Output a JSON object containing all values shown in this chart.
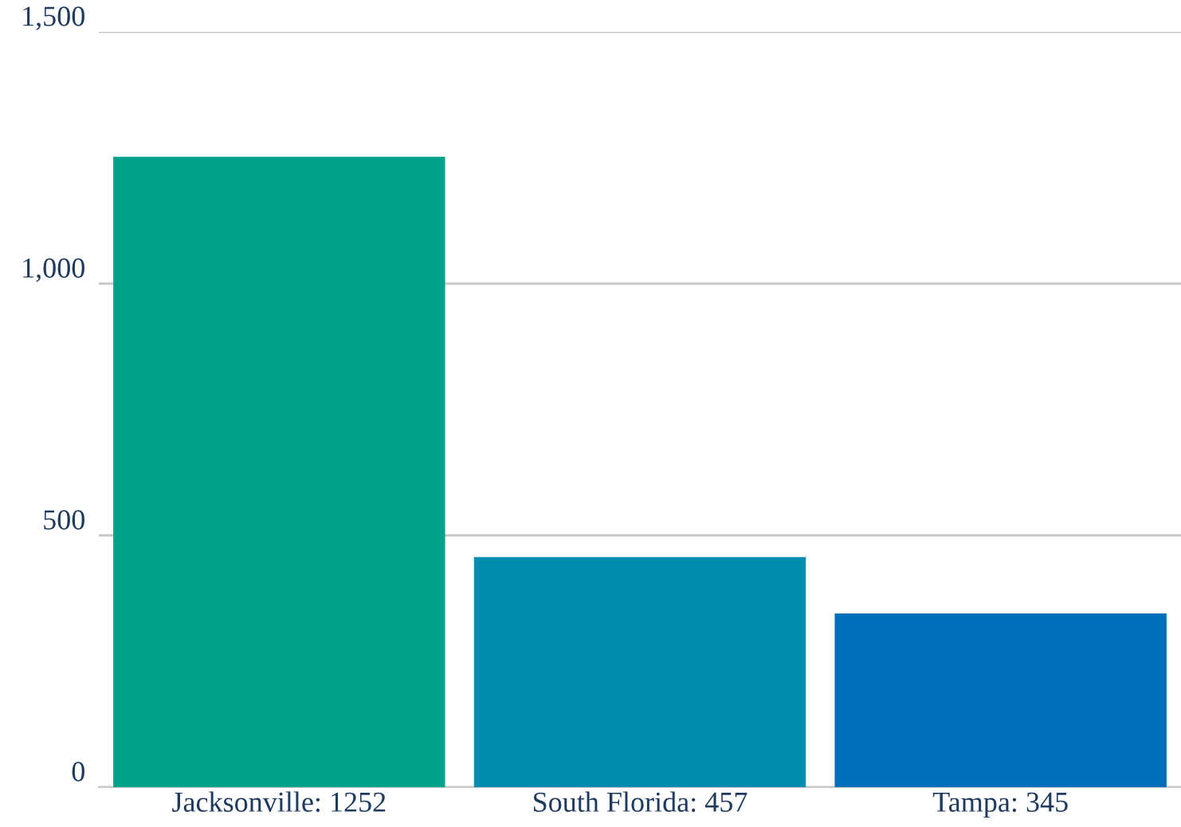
{
  "chart_data": {
    "type": "bar",
    "categories": [
      "Jacksonville: 1252",
      "South Florida: 457",
      "Tampa: 345"
    ],
    "values": [
      1252,
      457,
      345
    ],
    "colors": [
      "#00a28a",
      "#008eb0",
      "#006fbb"
    ],
    "ylim": [
      0,
      1500
    ],
    "yticks": [
      0,
      {
        "value": 500,
        "label": "500"
      },
      {
        "value": 1000,
        "label": "1,000"
      },
      {
        "value": 1500,
        "label": "1,500"
      }
    ],
    "grid": "y",
    "legend": false
  }
}
